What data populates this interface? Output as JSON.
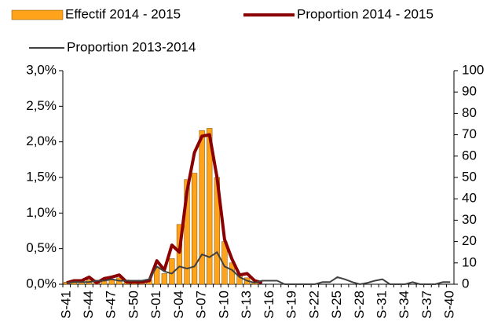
{
  "chart_data": {
    "type": "bar_line",
    "categories": [
      "S-41",
      null,
      null,
      "S-44",
      null,
      null,
      "S-47",
      null,
      null,
      "S-50",
      null,
      null,
      "S-01",
      null,
      null,
      "S-04",
      null,
      null,
      "S-07",
      null,
      null,
      "S-10",
      null,
      null,
      "S-13",
      null,
      null,
      "S-16",
      null,
      null,
      "S-19",
      null,
      null,
      "S-22",
      null,
      null,
      "S-25",
      null,
      null,
      "S-28",
      null,
      null,
      "S-31",
      null,
      null,
      "S-34",
      null,
      null,
      "S-37",
      null,
      null,
      "S-40"
    ],
    "series": [
      {
        "name": "Effectif 2014 - 2015",
        "kind": "bar",
        "axis": "y2",
        "color": "#ffa31a",
        "values": [
          1,
          1,
          1,
          2,
          1,
          2,
          2,
          3,
          2,
          1,
          1,
          2,
          8,
          5,
          12,
          28,
          49,
          52,
          72,
          73,
          50,
          20,
          10,
          4,
          3,
          1,
          0,
          0,
          0,
          0,
          0,
          0,
          0,
          0,
          0,
          0,
          0,
          0,
          0,
          0,
          0,
          0,
          0,
          0,
          0,
          0,
          0,
          0,
          0,
          0,
          0,
          0
        ]
      },
      {
        "name": "Proportion 2014 - 2015",
        "kind": "line",
        "color": "#8b0000",
        "values": [
          0.02,
          0.05,
          0.05,
          0.1,
          0.02,
          0.08,
          0.1,
          0.13,
          0.03,
          0.03,
          0.03,
          0.05,
          0.33,
          0.2,
          0.55,
          0.45,
          1.3,
          1.85,
          2.08,
          2.1,
          1.5,
          0.63,
          0.35,
          0.13,
          0.15,
          0.05,
          0.02,
          null,
          null,
          null,
          null,
          null,
          null,
          null,
          null,
          null,
          null,
          null,
          null,
          null,
          null,
          null,
          null,
          null,
          null,
          null,
          null,
          null,
          null,
          null,
          null,
          null
        ]
      },
      {
        "name": "Proportion 2013-2014",
        "kind": "line",
        "color": "#404040",
        "values": [
          0.02,
          0.03,
          0.03,
          0.03,
          0.05,
          0.05,
          0.07,
          0.05,
          0.05,
          0.05,
          0.05,
          0.07,
          0.25,
          0.18,
          0.15,
          0.25,
          0.22,
          0.25,
          0.42,
          0.38,
          0.45,
          0.25,
          0.2,
          0.1,
          0.05,
          0.02,
          0.05,
          0.05,
          0.05,
          0,
          0,
          0,
          0,
          0,
          0.03,
          0.03,
          0.1,
          0.07,
          0.03,
          0,
          0.02,
          0.05,
          0.07,
          0,
          0,
          0,
          0.03,
          0,
          0,
          0,
          0.03,
          0.03
        ]
      }
    ],
    "ylim": [
      0,
      3
    ],
    "yticks": [
      {
        "value": 0,
        "label": "0,0%"
      },
      {
        "value": 0.5,
        "label": "0,5%"
      },
      {
        "value": 1,
        "label": "1,0%"
      },
      {
        "value": 1.5,
        "label": "1,5%"
      },
      {
        "value": 2,
        "label": "2,0%"
      },
      {
        "value": 2.5,
        "label": "2,5%"
      },
      {
        "value": 3,
        "label": "3,0%"
      }
    ],
    "y2lim": [
      0,
      100
    ],
    "y2ticks": [
      0,
      10,
      20,
      30,
      40,
      50,
      60,
      70,
      80,
      90,
      100
    ]
  }
}
